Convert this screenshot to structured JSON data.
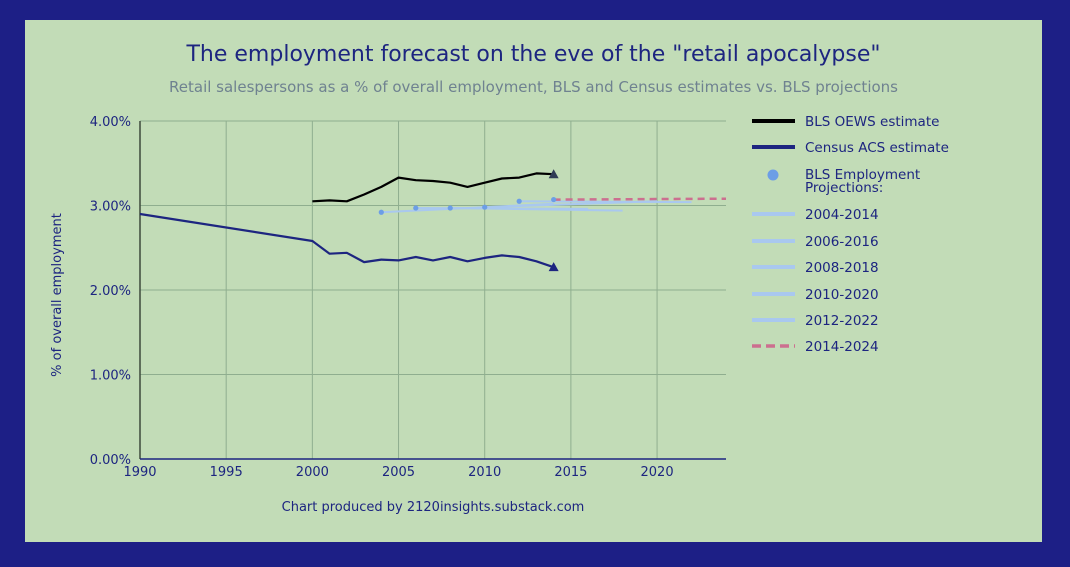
{
  "chart_data": {
    "type": "line",
    "title": "The employment forecast on the eve of the \"retail apocalypse\"",
    "subtitle": "Retail salespersons as a % of overall employment, BLS and Census estimates vs. BLS projections",
    "xlabel": "",
    "ylabel": "% of overall employment",
    "credit": "Chart produced by 2120insights.substack.com",
    "xlim": [
      1990,
      2024
    ],
    "ylim": [
      0,
      4
    ],
    "x_ticks": [
      1990,
      1995,
      2000,
      2005,
      2010,
      2015,
      2020
    ],
    "y_ticks": [
      0,
      1,
      2,
      3,
      4
    ],
    "y_tick_labels": [
      "0.00%",
      "1.00%",
      "2.00%",
      "3.00%",
      "4.00%"
    ],
    "grid": true,
    "legend_position": "right",
    "legend_header": "BLS Employment Projections:",
    "series": [
      {
        "name": "BLS OEWS estimate",
        "color": "#000000",
        "style": "solid",
        "x": [
          2000,
          2001,
          2002,
          2003,
          2004,
          2005,
          2006,
          2007,
          2008,
          2009,
          2010,
          2011,
          2012,
          2013,
          2014
        ],
        "values": [
          3.05,
          3.06,
          3.05,
          3.13,
          3.22,
          3.33,
          3.3,
          3.29,
          3.27,
          3.22,
          3.27,
          3.32,
          3.33,
          3.38,
          3.37
        ],
        "end_marker": "triangle"
      },
      {
        "name": "Census ACS estimate",
        "color": "#1d2580",
        "style": "solid",
        "x": [
          1990,
          2000,
          2001,
          2002,
          2003,
          2004,
          2005,
          2006,
          2007,
          2008,
          2009,
          2010,
          2011,
          2012,
          2013,
          2014
        ],
        "values": [
          2.9,
          2.58,
          2.43,
          2.44,
          2.33,
          2.36,
          2.35,
          2.39,
          2.35,
          2.39,
          2.34,
          2.38,
          2.41,
          2.39,
          2.34,
          2.27
        ],
        "end_marker": "triangle"
      }
    ],
    "projections": [
      {
        "name": "2004-2014",
        "color": "#a9c8ef",
        "style": "solid",
        "x": [
          2004,
          2014
        ],
        "values": [
          2.92,
          3.02
        ]
      },
      {
        "name": "2006-2016",
        "color": "#a9c8ef",
        "style": "solid",
        "x": [
          2006,
          2016
        ],
        "values": [
          2.97,
          2.96
        ]
      },
      {
        "name": "2008-2018",
        "color": "#a9c8ef",
        "style": "solid",
        "x": [
          2008,
          2018
        ],
        "values": [
          2.97,
          2.94
        ]
      },
      {
        "name": "2010-2020",
        "color": "#a9c8ef",
        "style": "solid",
        "x": [
          2010,
          2020
        ],
        "values": [
          2.98,
          3.05
        ]
      },
      {
        "name": "2012-2022",
        "color": "#a9c8ef",
        "style": "solid",
        "x": [
          2012,
          2022
        ],
        "values": [
          3.05,
          3.04
        ]
      },
      {
        "name": "2014-2024",
        "color": "#cc6f8f",
        "style": "dashed",
        "x": [
          2014,
          2024
        ],
        "values": [
          3.07,
          3.08
        ]
      }
    ],
    "projection_start_points": {
      "name": "BLS Employment Projections:",
      "color": "#6c9ee6",
      "x": [
        2004,
        2006,
        2008,
        2010,
        2012,
        2014
      ],
      "values": [
        2.92,
        2.97,
        2.97,
        2.98,
        3.05,
        3.07
      ]
    }
  }
}
